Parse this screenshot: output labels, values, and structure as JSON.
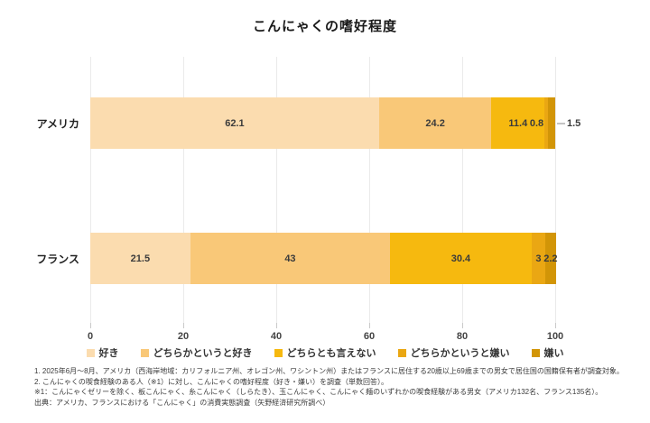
{
  "title": "こんにゃくの嗜好程度",
  "chart_data": {
    "type": "bar",
    "stacked": true,
    "orientation": "horizontal",
    "title": "こんにゃくの嗜好程度",
    "categories": [
      "アメリカ",
      "フランス"
    ],
    "series": [
      {
        "name": "好き",
        "color": "#FBDCAF",
        "values": [
          62.1,
          21.5
        ],
        "labels": [
          "62.1",
          "21.5"
        ]
      },
      {
        "name": "どちらかというと好き",
        "color": "#F9C878",
        "values": [
          24.2,
          43
        ],
        "labels": [
          "24.2",
          "43"
        ]
      },
      {
        "name": "どちらとも言えない",
        "color": "#F6B90F",
        "values": [
          11.4,
          30.4
        ],
        "labels": [
          "11.4",
          "30.4"
        ]
      },
      {
        "name": "どちらかというと嫌い",
        "color": "#EAA713",
        "values": [
          0.8,
          3
        ],
        "labels": [
          "0.8",
          "3"
        ]
      },
      {
        "name": "嫌い",
        "color": "#D29507",
        "values": [
          1.5,
          2.2
        ],
        "labels": [
          "1.5",
          "2.2"
        ]
      }
    ],
    "label_modes": [
      [
        "in",
        "in",
        "in",
        "before",
        "out"
      ],
      [
        "in",
        "in",
        "in",
        "in",
        "in"
      ]
    ],
    "xlim": [
      0,
      100
    ],
    "xticks": [
      "0",
      "20",
      "40",
      "60",
      "80",
      "100"
    ],
    "grid": true,
    "legend_position": "bottom"
  },
  "footnotes": [
    "1. 2025年6月～8月、アメリカ（西海岸地域：カリフォルニア州、オレゴン州、ワシントン州）またはフランスに居住する20歳以上69歳までの男女で居住国の国籍保有者が調査対象。",
    "2. こんにゃくの喫食経験のある人（※1）に対し、こんにゃくの嗜好程度（好き・嫌い）を調査（単数回答）。",
    "※1：こんにゃくゼリーを除く、板こんにゃく、糸こんにゃく（しらたき）、玉こんにゃく、こんにゃく麺のいずれかの喫食経験がある男女（アメリカ132名、フランス135名）。",
    "出典：アメリカ、フランスにおける「こんにゃく」の消費実態調査（矢野経済研究所調べ）"
  ]
}
